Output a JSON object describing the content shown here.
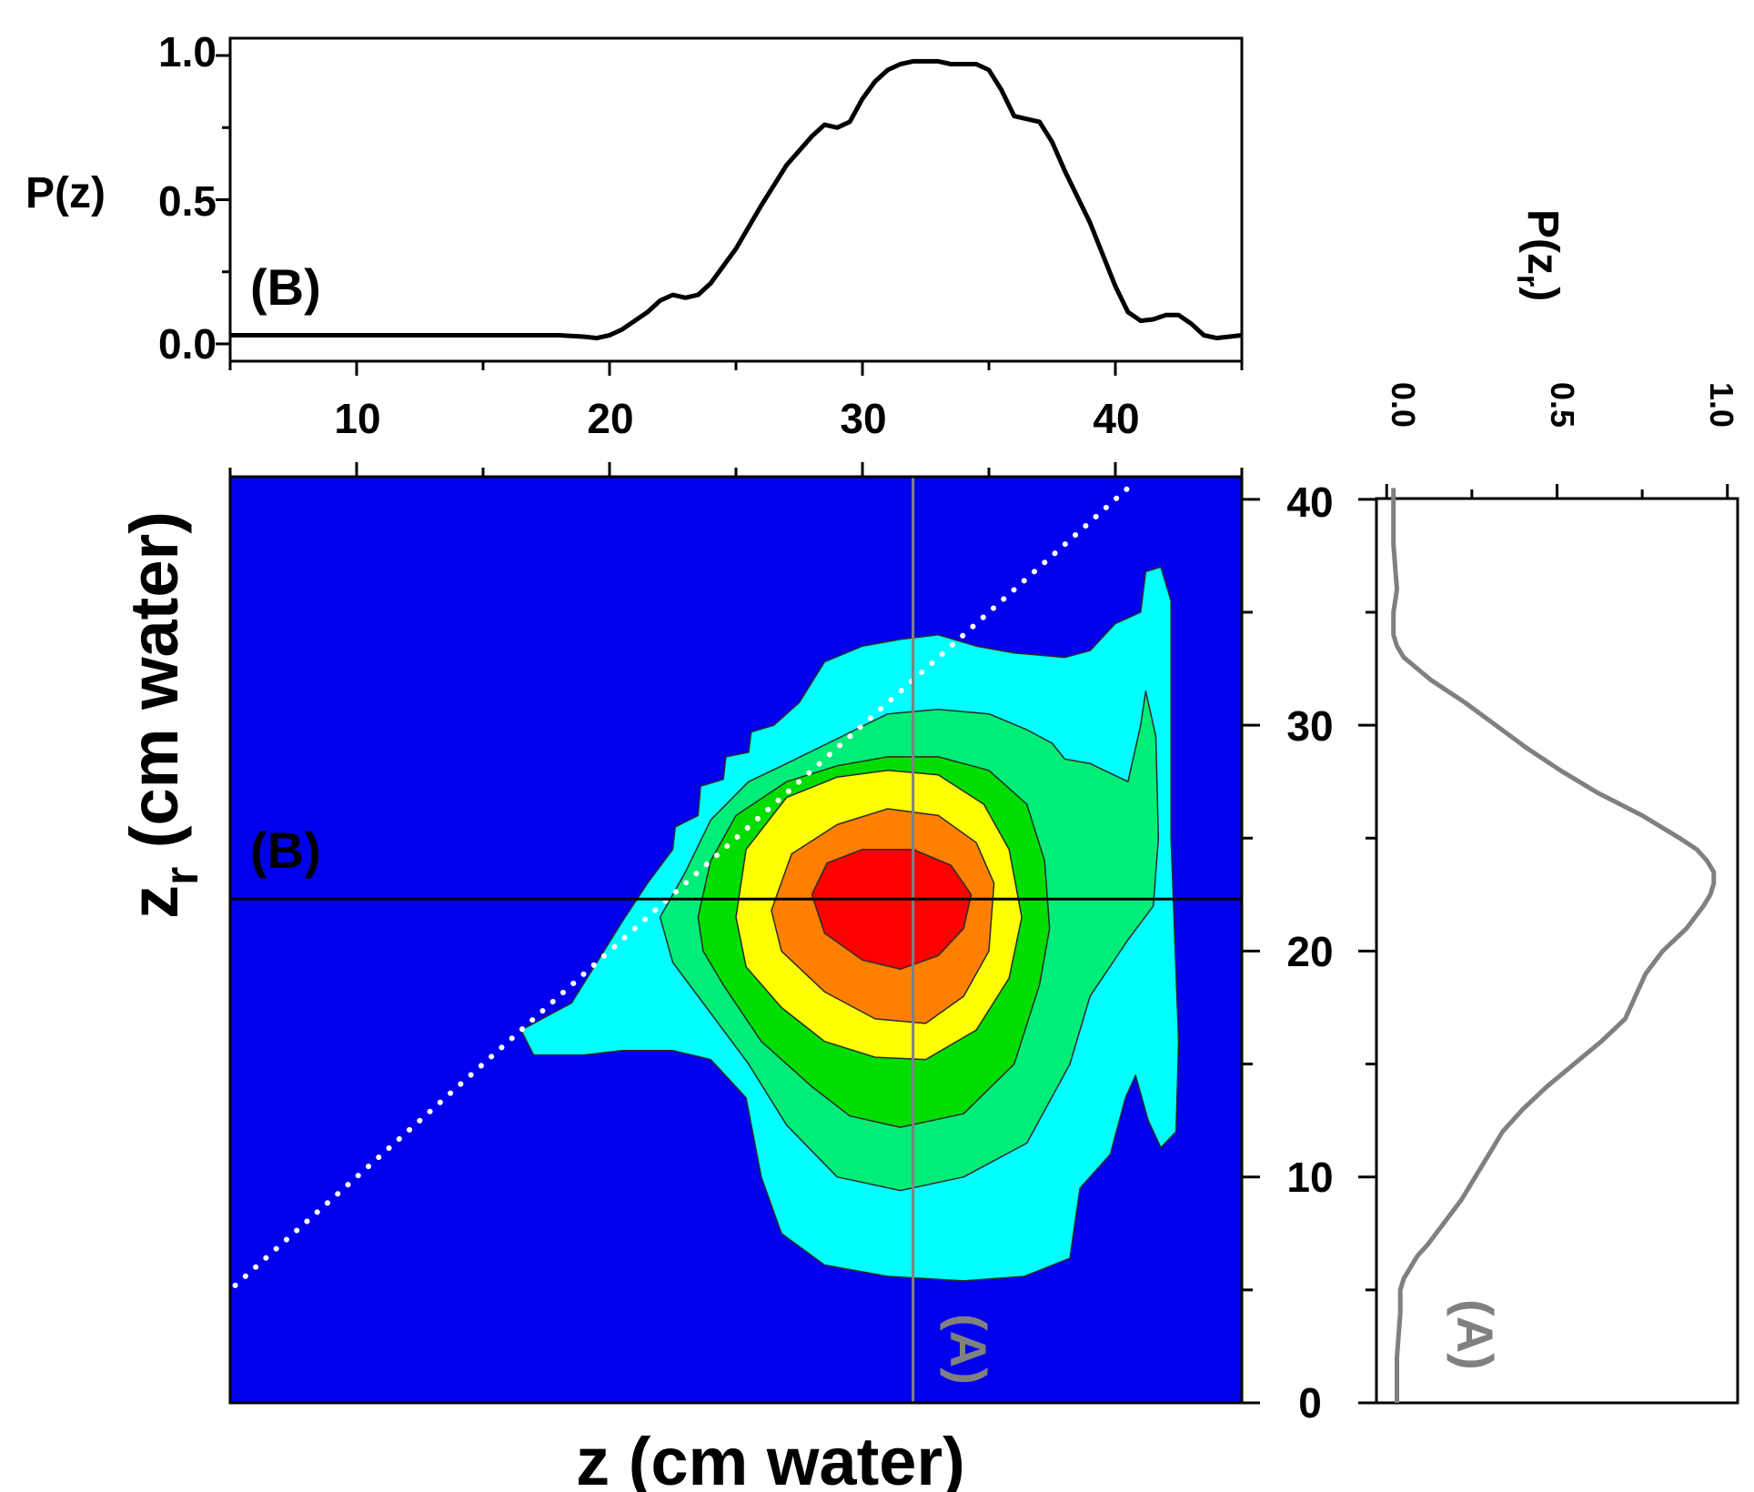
{
  "colors": {
    "contour_levels": [
      "#0000ee",
      "#00ffff",
      "#00ee77",
      "#00dd00",
      "#ffff00",
      "#ff8000",
      "#ff0000"
    ],
    "marginal_top": "#000000",
    "marginal_right": "#808080",
    "cut_line_a": "#808080",
    "cut_line_b": "#000000",
    "diagonal": "#ffffff",
    "label_a": "#808080",
    "label_b": "#000000"
  },
  "chart_data": [
    {
      "id": "top_marginal",
      "type": "line",
      "ylabel": "P(z)",
      "xlim": [
        5,
        45
      ],
      "ylim": [
        -0.06,
        1.06
      ],
      "x_ticks": [
        10,
        20,
        30,
        40
      ],
      "x_tick_labels": [
        "10",
        "20",
        "30",
        "40"
      ],
      "y_ticks": [
        0.0,
        0.5,
        1.0
      ],
      "y_tick_labels": [
        "0.0",
        "0.5",
        "1.0"
      ],
      "panel_label": "(B)",
      "series": [
        {
          "name": "P(z)",
          "x": [
            5,
            10,
            15,
            18,
            19,
            19.5,
            20,
            20.5,
            21,
            21.5,
            22,
            22.5,
            23,
            23.5,
            24,
            25,
            26,
            27,
            28,
            28.5,
            29,
            29.5,
            30,
            30.5,
            31,
            31.5,
            32,
            32.5,
            33,
            33.5,
            34,
            34.5,
            35,
            35.5,
            36,
            36.5,
            37,
            37.5,
            38,
            39,
            40,
            40.5,
            41,
            41.5,
            42,
            42.5,
            43,
            43.5,
            44,
            45
          ],
          "y": [
            0.03,
            0.03,
            0.03,
            0.03,
            0.025,
            0.02,
            0.03,
            0.05,
            0.08,
            0.11,
            0.15,
            0.17,
            0.16,
            0.17,
            0.21,
            0.33,
            0.48,
            0.62,
            0.72,
            0.76,
            0.75,
            0.77,
            0.85,
            0.91,
            0.95,
            0.97,
            0.98,
            0.98,
            0.98,
            0.97,
            0.97,
            0.97,
            0.95,
            0.88,
            0.79,
            0.78,
            0.77,
            0.7,
            0.6,
            0.42,
            0.2,
            0.11,
            0.08,
            0.085,
            0.1,
            0.1,
            0.07,
            0.03,
            0.02,
            0.03
          ]
        }
      ]
    },
    {
      "id": "contour_map",
      "type": "heatmap",
      "xlabel": "z (cm water)",
      "ylabel": "z_r (cm water)",
      "xlim": [
        5,
        45
      ],
      "ylim": [
        0,
        41
      ],
      "y_ticks": [
        0,
        10,
        20,
        30,
        40
      ],
      "y_tick_labels": [
        "0",
        "10",
        "20",
        "30",
        "40"
      ],
      "levels": [
        {
          "level": 1,
          "polygon": [
            [
              16.5,
              16.5
            ],
            [
              18.5,
              17.7
            ],
            [
              20.5,
              21.3
            ],
            [
              21.5,
              23.0
            ],
            [
              22.5,
              24.5
            ],
            [
              22.6,
              25.5
            ],
            [
              23.5,
              26.0
            ],
            [
              23.6,
              27.3
            ],
            [
              24.5,
              27.6
            ],
            [
              24.6,
              28.6
            ],
            [
              25.5,
              28.8
            ],
            [
              25.6,
              29.7
            ],
            [
              26.5,
              30.0
            ],
            [
              27.5,
              31.0
            ],
            [
              28.5,
              32.8
            ],
            [
              30.0,
              33.5
            ],
            [
              31.5,
              33.8
            ],
            [
              33.0,
              34.0
            ],
            [
              34.5,
              33.5
            ],
            [
              36.0,
              33.2
            ],
            [
              38.0,
              33.0
            ],
            [
              39.0,
              33.3
            ],
            [
              40.0,
              34.5
            ],
            [
              41.0,
              35.0
            ],
            [
              41.2,
              36.8
            ],
            [
              41.8,
              37.0
            ],
            [
              42.2,
              35.5
            ],
            [
              42.2,
              25.0
            ],
            [
              42.5,
              16.0
            ],
            [
              42.4,
              12.0
            ],
            [
              41.8,
              11.3
            ],
            [
              41.3,
              12.5
            ],
            [
              40.8,
              14.5
            ],
            [
              40.4,
              13.5
            ],
            [
              39.8,
              11.0
            ],
            [
              38.6,
              9.5
            ],
            [
              38.2,
              6.4
            ],
            [
              36.4,
              5.6
            ],
            [
              34.0,
              5.4
            ],
            [
              31.0,
              5.6
            ],
            [
              28.5,
              6.1
            ],
            [
              26.8,
              7.5
            ],
            [
              26.0,
              10.0
            ],
            [
              25.4,
              13.5
            ],
            [
              24.0,
              15.2
            ],
            [
              22.5,
              15.6
            ],
            [
              20.5,
              15.6
            ],
            [
              19.0,
              15.4
            ],
            [
              17.0,
              15.4
            ],
            [
              16.5,
              16.5
            ]
          ]
        },
        {
          "level": 2,
          "polygon": [
            [
              22.0,
              21.5
            ],
            [
              23.0,
              23.5
            ],
            [
              24.0,
              25.8
            ],
            [
              25.5,
              27.5
            ],
            [
              27.0,
              28.3
            ],
            [
              29.0,
              29.4
            ],
            [
              31.0,
              30.5
            ],
            [
              33.0,
              30.7
            ],
            [
              35.0,
              30.5
            ],
            [
              36.5,
              29.8
            ],
            [
              37.5,
              29.2
            ],
            [
              38.0,
              28.5
            ],
            [
              39.0,
              28.3
            ],
            [
              40.5,
              27.5
            ],
            [
              41.0,
              30.0
            ],
            [
              41.2,
              31.5
            ],
            [
              41.6,
              29.5
            ],
            [
              41.7,
              25.0
            ],
            [
              41.5,
              22.0
            ],
            [
              40.5,
              20.5
            ],
            [
              39.0,
              18.0
            ],
            [
              38.2,
              15.0
            ],
            [
              36.5,
              11.5
            ],
            [
              34.0,
              10.0
            ],
            [
              31.5,
              9.4
            ],
            [
              29.0,
              10.0
            ],
            [
              27.0,
              12.3
            ],
            [
              25.5,
              15.0
            ],
            [
              23.5,
              18.0
            ],
            [
              22.5,
              19.5
            ],
            [
              22.0,
              21.5
            ]
          ]
        },
        {
          "level": 3,
          "polygon": [
            [
              23.5,
              21.5
            ],
            [
              24.0,
              24.0
            ],
            [
              25.0,
              26.0
            ],
            [
              27.0,
              27.5
            ],
            [
              29.0,
              28.2
            ],
            [
              31.0,
              28.6
            ],
            [
              33.0,
              28.6
            ],
            [
              35.0,
              28.0
            ],
            [
              36.5,
              26.5
            ],
            [
              37.2,
              24.0
            ],
            [
              37.4,
              21.0
            ],
            [
              37.0,
              18.5
            ],
            [
              36.0,
              15.0
            ],
            [
              34.0,
              12.8
            ],
            [
              31.5,
              12.2
            ],
            [
              29.5,
              12.7
            ],
            [
              28.0,
              14.0
            ],
            [
              26.0,
              16.0
            ],
            [
              24.5,
              18.5
            ],
            [
              23.7,
              20.0
            ],
            [
              23.5,
              21.5
            ]
          ]
        },
        {
          "level": 4,
          "polygon": [
            [
              25.0,
              21.5
            ],
            [
              25.4,
              24.5
            ],
            [
              27.0,
              26.8
            ],
            [
              29.0,
              27.7
            ],
            [
              31.0,
              28.0
            ],
            [
              33.0,
              27.8
            ],
            [
              34.8,
              26.5
            ],
            [
              35.8,
              24.5
            ],
            [
              36.3,
              21.5
            ],
            [
              35.8,
              18.8
            ],
            [
              34.5,
              16.5
            ],
            [
              32.5,
              15.2
            ],
            [
              30.5,
              15.3
            ],
            [
              28.5,
              16.0
            ],
            [
              26.8,
              17.5
            ],
            [
              25.4,
              19.3
            ],
            [
              25.0,
              21.5
            ]
          ]
        },
        {
          "level": 5,
          "polygon": [
            [
              26.4,
              21.8
            ],
            [
              27.2,
              24.3
            ],
            [
              29.0,
              25.6
            ],
            [
              31.0,
              26.3
            ],
            [
              33.0,
              26.0
            ],
            [
              34.5,
              24.8
            ],
            [
              35.2,
              23.0
            ],
            [
              35.0,
              20.0
            ],
            [
              34.0,
              18.0
            ],
            [
              32.5,
              16.8
            ],
            [
              30.5,
              17.0
            ],
            [
              28.5,
              18.2
            ],
            [
              26.8,
              20.0
            ],
            [
              26.4,
              21.8
            ]
          ]
        },
        {
          "level": 6,
          "polygon": [
            [
              28.0,
              22.5
            ],
            [
              28.6,
              23.9
            ],
            [
              30.0,
              24.5
            ],
            [
              32.0,
              24.5
            ],
            [
              33.5,
              23.8
            ],
            [
              34.3,
              22.5
            ],
            [
              34.0,
              21.0
            ],
            [
              33.0,
              19.8
            ],
            [
              31.5,
              19.2
            ],
            [
              30.0,
              19.6
            ],
            [
              28.5,
              20.8
            ],
            [
              28.0,
              22.5
            ]
          ]
        }
      ],
      "cut_lines": [
        {
          "label": "(A)",
          "orientation": "vertical",
          "z": 32.0
        },
        {
          "label": "(B)",
          "orientation": "horizontal",
          "zr": 22.3
        }
      ],
      "diagonal_line": {
        "style": "dotted",
        "from": [
          5.2,
          5.2
        ],
        "to": [
          40.7,
          40.7
        ]
      }
    },
    {
      "id": "right_marginal",
      "type": "line",
      "xlabel": "P(z_r)",
      "xlim": [
        -0.03,
        1.03
      ],
      "ylim": [
        0,
        41
      ],
      "x_ticks": [
        0.0,
        0.5,
        1.0
      ],
      "x_tick_labels": [
        "0.0",
        "0.5",
        "1.0"
      ],
      "panel_label": "(A)",
      "series": [
        {
          "name": "P(z_r)",
          "zr": [
            0,
            2,
            4,
            5,
            5.5,
            6,
            6.5,
            7,
            8,
            9,
            10,
            11,
            12,
            13,
            14,
            15,
            16,
            17,
            18,
            19,
            20,
            21,
            22,
            22.5,
            23,
            23.5,
            24,
            24.5,
            25,
            26,
            27,
            28,
            29,
            30,
            31,
            32,
            33,
            33.5,
            34,
            35,
            36,
            38,
            40.5
          ],
          "p": [
            0.03,
            0.03,
            0.04,
            0.04,
            0.05,
            0.07,
            0.09,
            0.12,
            0.17,
            0.22,
            0.26,
            0.3,
            0.34,
            0.4,
            0.47,
            0.55,
            0.63,
            0.7,
            0.73,
            0.76,
            0.81,
            0.88,
            0.93,
            0.95,
            0.96,
            0.96,
            0.94,
            0.91,
            0.86,
            0.75,
            0.62,
            0.51,
            0.41,
            0.32,
            0.23,
            0.13,
            0.05,
            0.03,
            0.02,
            0.02,
            0.03,
            0.02,
            0.02
          ]
        }
      ]
    }
  ]
}
